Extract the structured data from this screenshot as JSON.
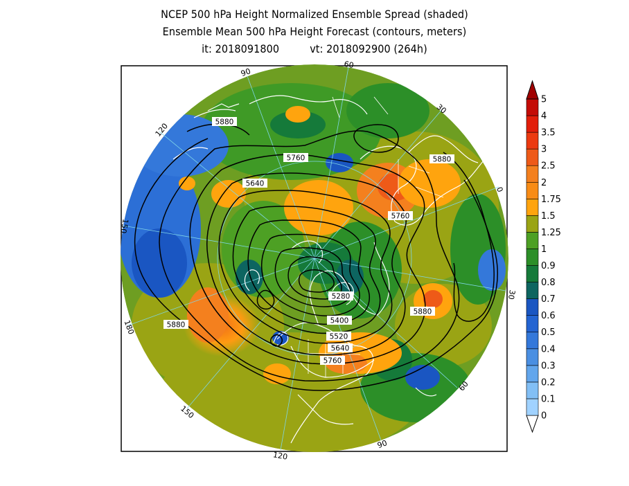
{
  "title": {
    "line1": "NCEP 500 hPa Height Normalized Ensemble Spread (shaded)",
    "line2": "Ensemble Mean 500 hPa Height Forecast (contours, meters)",
    "init_time": "it: 2018091800",
    "valid_time": "vt: 2018092900 (264h)"
  },
  "colorbar": {
    "levels": [
      {
        "label": "0",
        "color": "#a0d2ff"
      },
      {
        "label": "0.1",
        "color": "#82bff5"
      },
      {
        "label": "0.2",
        "color": "#62a6ec"
      },
      {
        "label": "0.3",
        "color": "#4a8fe2"
      },
      {
        "label": "0.4",
        "color": "#3478da"
      },
      {
        "label": "0.5",
        "color": "#2364d2"
      },
      {
        "label": "0.6",
        "color": "#1a56c2"
      },
      {
        "label": "0.7",
        "color": "#0d6560"
      },
      {
        "label": "0.8",
        "color": "#157a3a"
      },
      {
        "label": "0.9",
        "color": "#2c8f28"
      },
      {
        "label": "1",
        "color": "#4da024"
      },
      {
        "label": "1.25",
        "color": "#9aa414"
      },
      {
        "label": "1.5",
        "color": "#ffa40e"
      },
      {
        "label": "1.75",
        "color": "#f88c16"
      },
      {
        "label": "2",
        "color": "#f4801e"
      },
      {
        "label": "2.5",
        "color": "#ee5a18"
      },
      {
        "label": "3",
        "color": "#ec3a10"
      },
      {
        "label": "3.5",
        "color": "#e21e0a"
      },
      {
        "label": "4",
        "color": "#c40c06"
      },
      {
        "label": "5",
        "color": "#a00000"
      }
    ]
  },
  "longitude_labels": [
    "60",
    "30",
    "0",
    "30",
    "60",
    "90",
    "120",
    "150",
    "180",
    "150",
    "120",
    "90"
  ],
  "contour_labels": [
    {
      "text": "5880"
    },
    {
      "text": "5760"
    },
    {
      "text": "5640"
    },
    {
      "text": "5880"
    },
    {
      "text": "5760"
    },
    {
      "text": "5880"
    },
    {
      "text": "5280"
    },
    {
      "text": "5400"
    },
    {
      "text": "5520"
    },
    {
      "text": "5640"
    },
    {
      "text": "5760"
    },
    {
      "text": "5880"
    }
  ]
}
